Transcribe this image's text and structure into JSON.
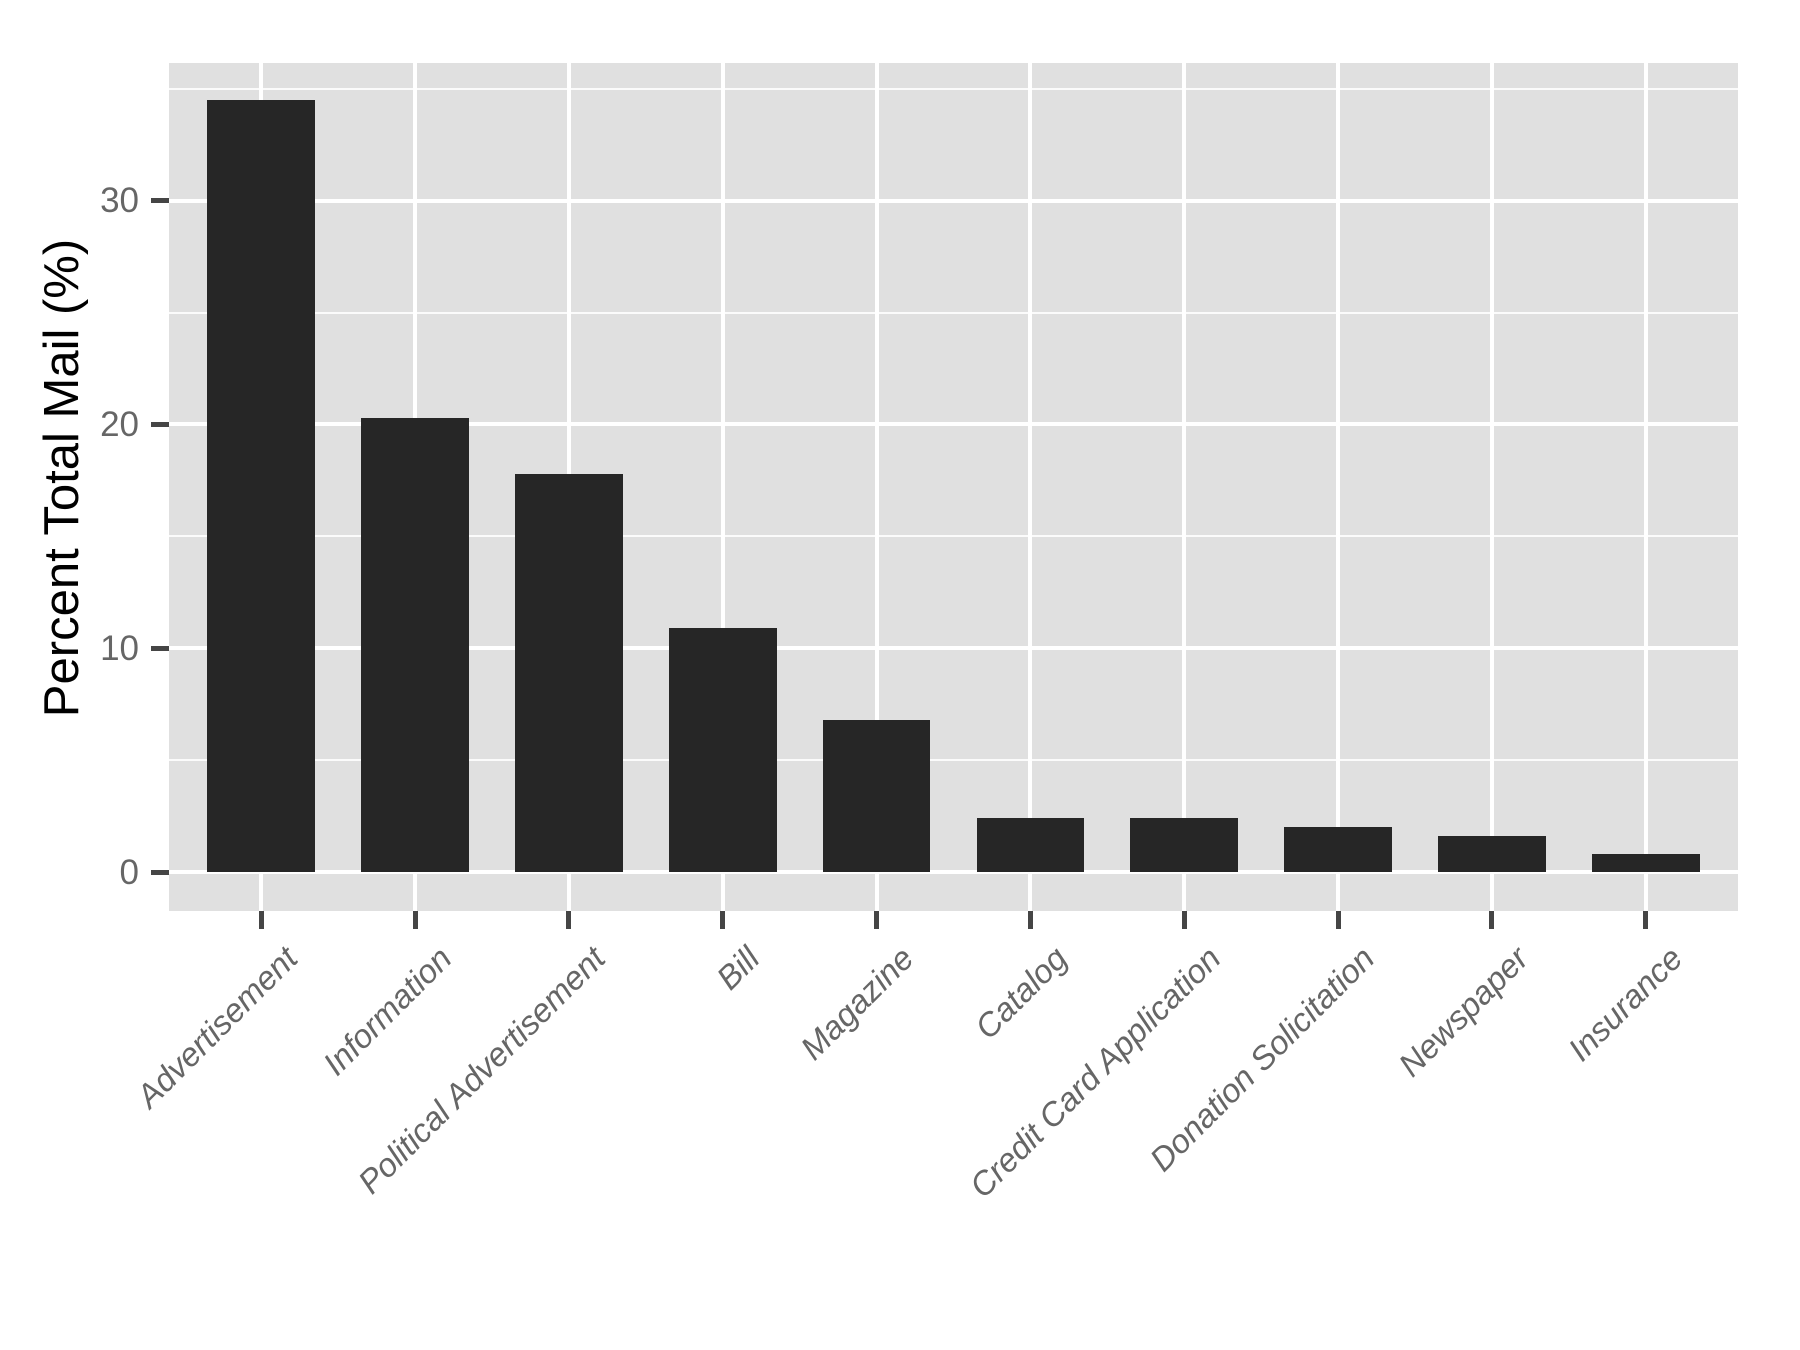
{
  "figure": {
    "background": "#ffffff"
  },
  "chart_data": {
    "type": "bar",
    "title": "",
    "xlabel": "",
    "ylabel": "Percent Total Mail (%)",
    "categories": [
      "Advertisement",
      "Information",
      "Political Advertisement",
      "Bill",
      "Magazine",
      "Catalog",
      "Credit Card Application",
      "Donation Solicitation",
      "Newspaper",
      "Insurance"
    ],
    "values": [
      34.5,
      20.3,
      17.8,
      10.9,
      6.8,
      2.4,
      2.4,
      2.0,
      1.6,
      0.8
    ],
    "yticks": [
      0,
      10,
      20,
      30
    ],
    "yticks_minor": [
      5,
      15,
      25,
      35
    ],
    "ylim": [
      -1.74,
      36.15
    ],
    "grid": "on",
    "legend": "none",
    "bar_width_frac": 0.7,
    "x_edge_padding_units": 0.6
  },
  "style": {
    "bar_color": "#262626",
    "panel_bg": "#e0e0e0",
    "grid_major_color": "#ffffff",
    "grid_minor_color": "#ffffff",
    "tick_mark_color": "#454545",
    "tick_label_color": "#666666",
    "axis_title_color": "#000000"
  }
}
